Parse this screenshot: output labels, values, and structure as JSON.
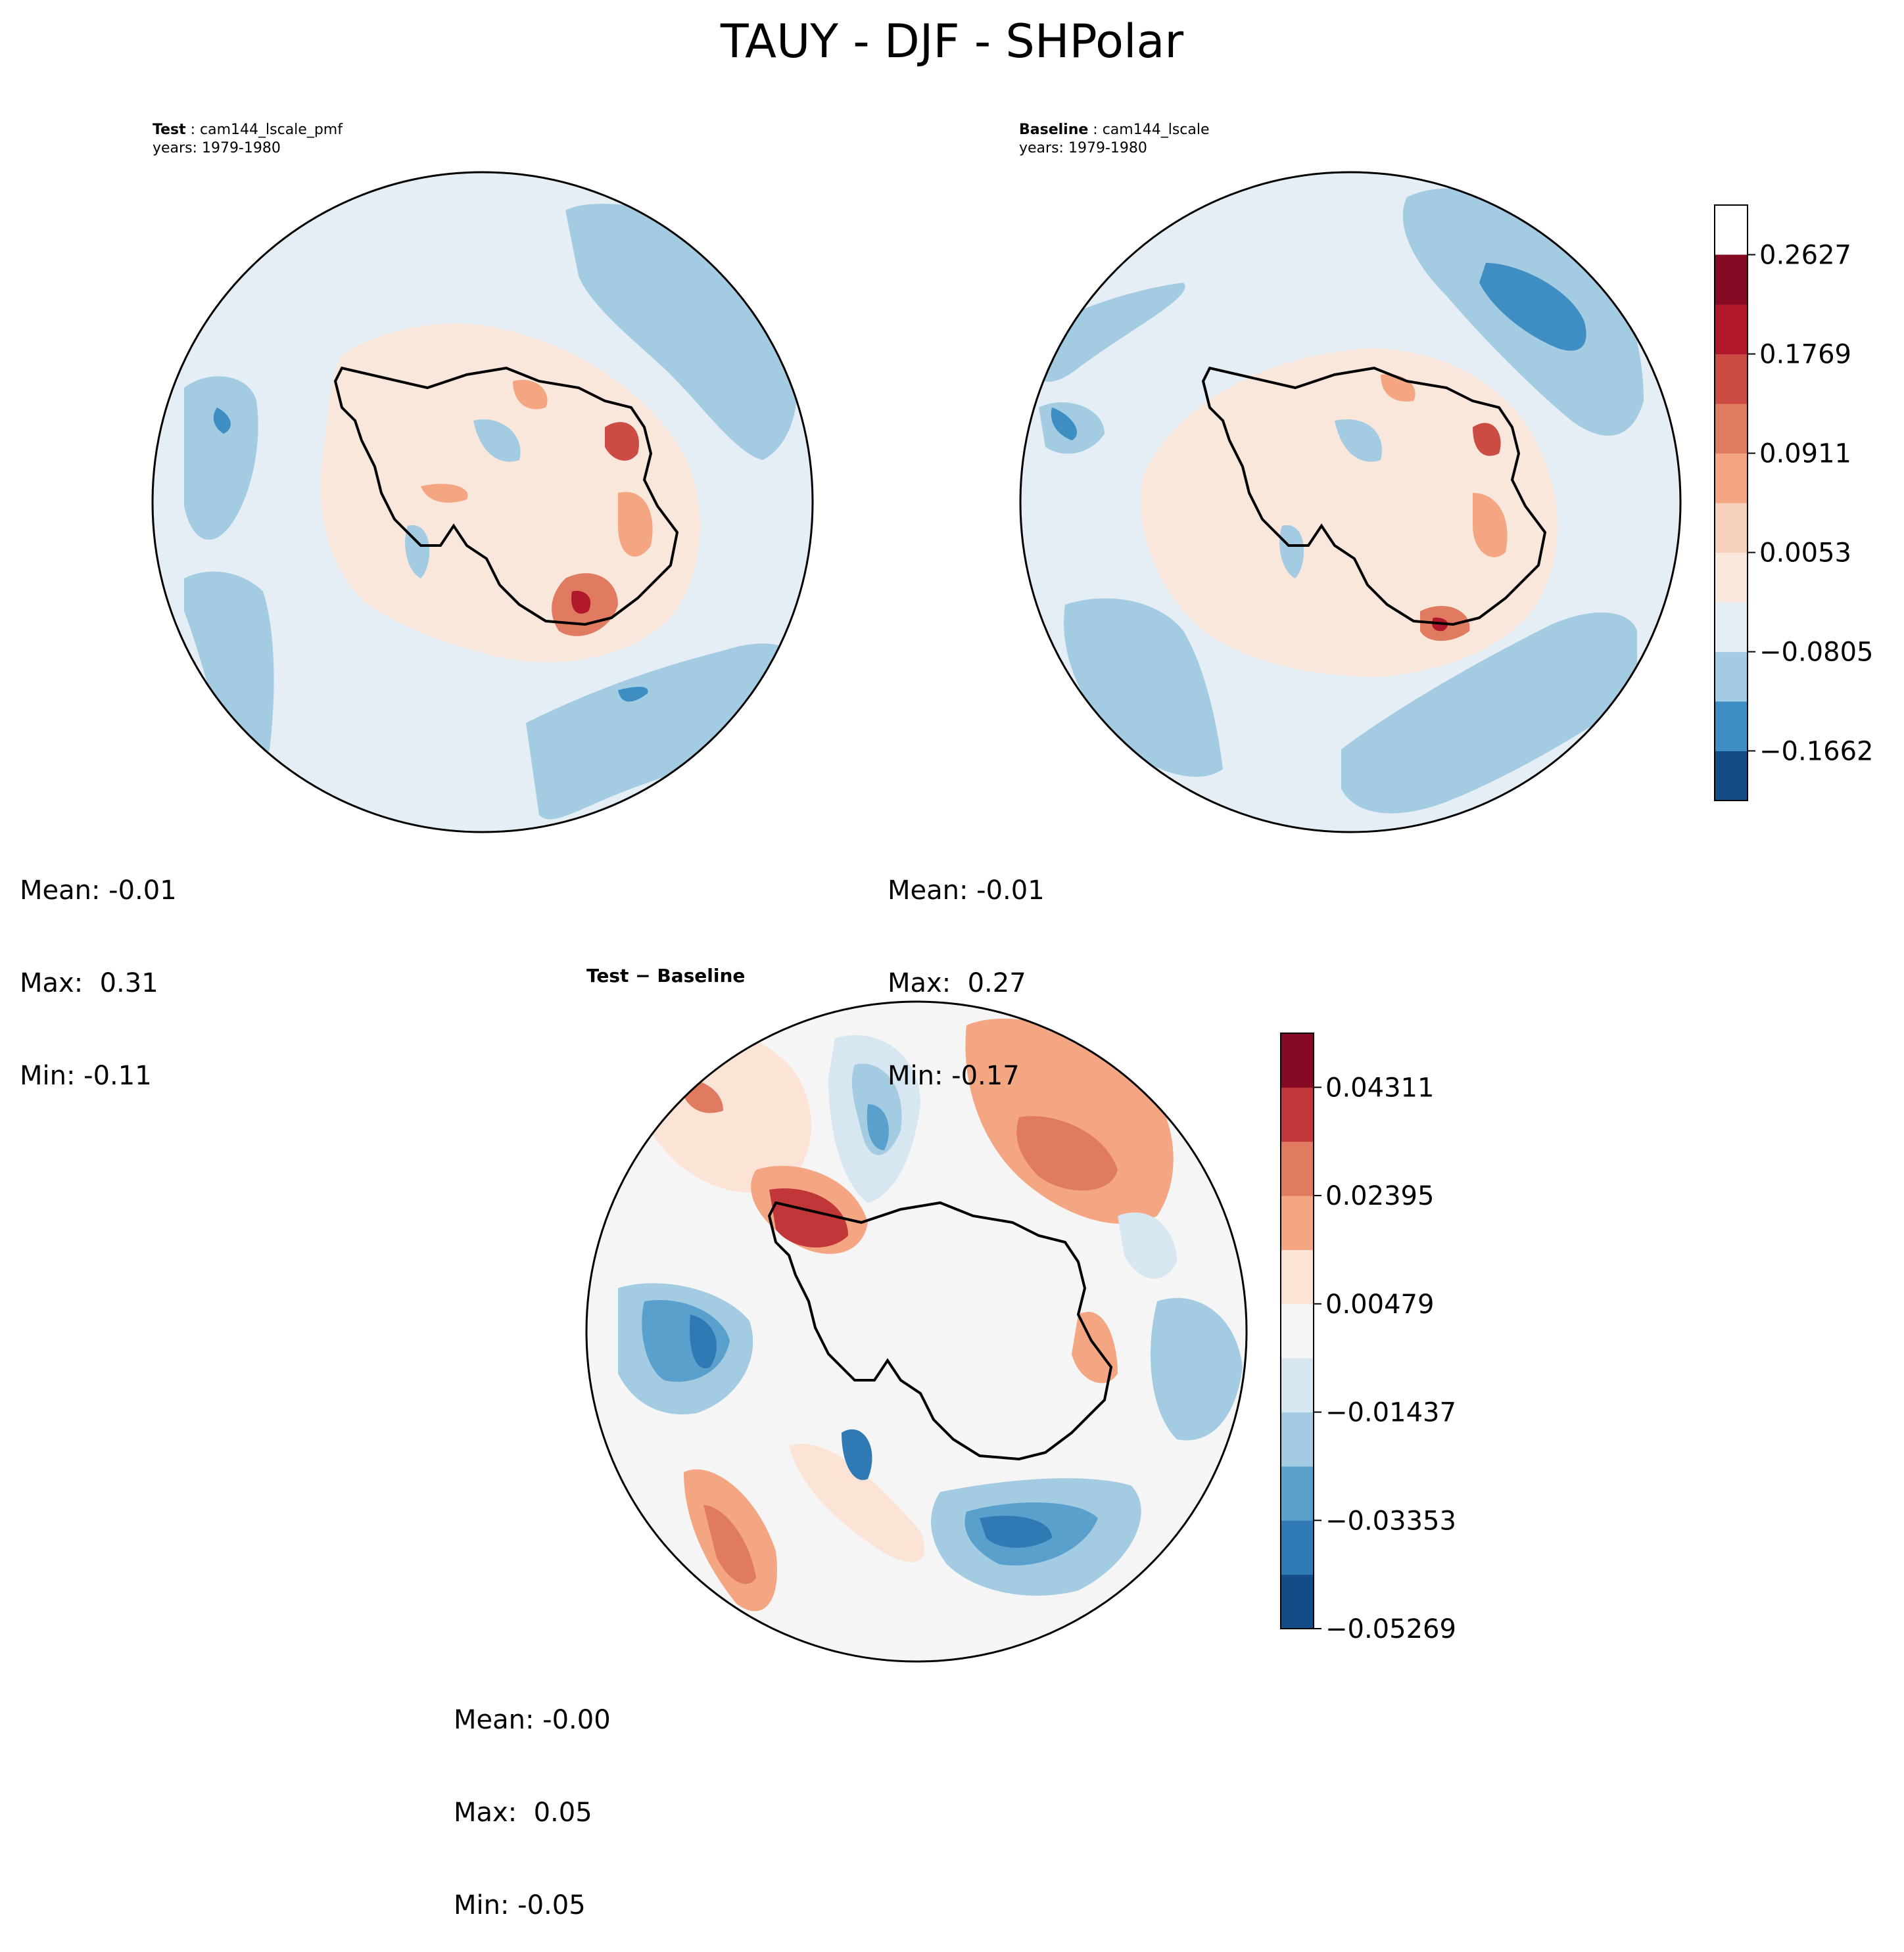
{
  "title": "TAUY - DJF - SHPolar",
  "panels": {
    "test": {
      "label": "Test",
      "case": "cam144_lscale_pmf",
      "years": "years: 1979-1980",
      "mean": "Mean: -0.01",
      "max": "Max:  0.31",
      "min": "Min: -0.11"
    },
    "baseline": {
      "label": "Baseline",
      "case": "cam144_lscale",
      "years": "years: 1979-1980",
      "mean": "Mean: -0.01",
      "max": "Max:  0.27",
      "min": "Min: -0.17"
    },
    "diff": {
      "label": "Test − Baseline",
      "mean": "Mean: -0.00",
      "max": "Max:  0.05",
      "min": "Min: -0.05"
    }
  },
  "chart_data": [
    {
      "type": "heatmap",
      "name": "Test",
      "projection": "south polar stereographic",
      "variable": "TAUY",
      "colormap": "RdBu_r",
      "colorbar_ticks": [
        "0.2627",
        "0.1769",
        "0.0911",
        "0.0053",
        "−0.0805",
        "−0.1662"
      ],
      "levels": [
        -0.2091,
        -0.1662,
        -0.1233,
        -0.0805,
        -0.0376,
        0.0053,
        0.0482,
        0.0911,
        0.134,
        0.1769,
        0.2198,
        0.2627,
        0.3056
      ],
      "colors": [
        "#134c87",
        "#3e8ec4",
        "#a3cce2",
        "#e4eef4",
        "#fae7dc",
        "#f6d2bc",
        "#f4a582",
        "#e07b62",
        "#cc4c43",
        "#b2182b",
        "#870a24"
      ],
      "stats": {
        "mean": -0.01,
        "max": 0.31,
        "min": -0.11
      }
    },
    {
      "type": "heatmap",
      "name": "Baseline",
      "projection": "south polar stereographic",
      "variable": "TAUY",
      "colormap": "RdBu_r",
      "colorbar_ticks": [
        "0.2627",
        "0.1769",
        "0.0911",
        "0.0053",
        "−0.0805",
        "−0.1662"
      ],
      "stats": {
        "mean": -0.01,
        "max": 0.27,
        "min": -0.17
      }
    },
    {
      "type": "heatmap",
      "name": "Test − Baseline",
      "projection": "south polar stereographic",
      "variable": "TAUY difference",
      "colormap": "RdBu_r",
      "colorbar_ticks": [
        "0.04311",
        "0.02395",
        "0.00479",
        "−0.01437",
        "−0.03353",
        "−0.05269"
      ],
      "levels": [
        -0.05269,
        -0.04311,
        -0.03353,
        -0.02395,
        -0.01437,
        -0.00479,
        0.00479,
        0.01437,
        0.02395,
        0.03353,
        0.04311,
        0.05269
      ],
      "colors": [
        "#134c87",
        "#2f79b5",
        "#5aa0cd",
        "#a3cce2",
        "#d6e7f1",
        "#f5f5f5",
        "#fbe3d6",
        "#f4a582",
        "#e07b62",
        "#c13639",
        "#870a24"
      ],
      "stats": {
        "mean": -0.0,
        "max": 0.05,
        "min": -0.05
      }
    }
  ]
}
